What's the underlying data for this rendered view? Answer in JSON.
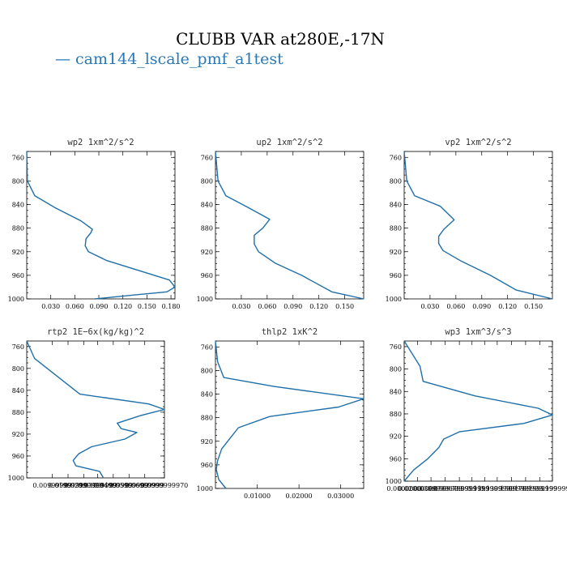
{
  "figure": {
    "title": "CLUBB VAR at280E,-17N",
    "legend": "— cam144_lscale_pmf_a1test",
    "line_color": "#1f6fa8",
    "legend_color": "#2a78b4"
  },
  "chart_data": [
    {
      "type": "line",
      "title": "wp2  1xm^2/s^2",
      "xlim": [
        0,
        0.185
      ],
      "ylim": [
        1000,
        750
      ],
      "xticks": [
        0.03,
        0.06,
        0.09,
        0.12,
        0.15,
        0.18
      ],
      "xtick_labels": [
        "0.030",
        "0.060",
        "0.090",
        "0.120",
        "0.150",
        "0.180"
      ],
      "yticks": [
        760,
        800,
        840,
        880,
        920,
        960,
        1000
      ],
      "series": [
        {
          "x": [
            0,
            0.0008,
            0.01,
            0.035,
            0.068,
            0.082,
            0.08,
            0.074,
            0.073,
            0.077,
            0.1,
            0.178,
            0.185,
            0.175,
            0.13,
            0.085
          ],
          "y": [
            750,
            800,
            825,
            845,
            868,
            882,
            888,
            898,
            910,
            920,
            935,
            968,
            980,
            988,
            994,
            1000
          ]
        }
      ]
    },
    {
      "type": "line",
      "title": "up2  1xm^2/s^2",
      "xlim": [
        0,
        0.172
      ],
      "ylim": [
        1000,
        750
      ],
      "xticks": [
        0.03,
        0.06,
        0.09,
        0.12,
        0.15
      ],
      "xtick_labels": [
        "0.030",
        "0.060",
        "0.090",
        "0.120",
        "0.150"
      ],
      "yticks": [
        760,
        800,
        840,
        880,
        920,
        960,
        1000
      ],
      "series": [
        {
          "x": [
            0,
            0.003,
            0.012,
            0.038,
            0.063,
            0.055,
            0.045,
            0.045,
            0.05,
            0.07,
            0.1,
            0.135,
            0.172
          ],
          "y": [
            750,
            800,
            825,
            845,
            865,
            880,
            892,
            907,
            920,
            940,
            960,
            988,
            1000
          ]
        }
      ]
    },
    {
      "type": "line",
      "title": "vp2  1xm^2/s^2",
      "xlim": [
        0,
        0.172
      ],
      "ylim": [
        1000,
        750
      ],
      "xticks": [
        0.03,
        0.06,
        0.09,
        0.12,
        0.15
      ],
      "xtick_labels": [
        "0.030",
        "0.060",
        "0.090",
        "0.120",
        "0.150"
      ],
      "yticks": [
        760,
        800,
        840,
        880,
        920,
        960,
        1000
      ],
      "series": [
        {
          "x": [
            0,
            0.003,
            0.012,
            0.042,
            0.058,
            0.046,
            0.04,
            0.04,
            0.045,
            0.065,
            0.1,
            0.13,
            0.172
          ],
          "y": [
            750,
            800,
            825,
            843,
            866,
            882,
            894,
            906,
            918,
            935,
            960,
            985,
            1000
          ]
        }
      ]
    },
    {
      "type": "line",
      "title": "rtp2  1E−6x(kg/kg)^2",
      "xlim": [
        0,
        3.5e-06
      ],
      "ylim": [
        1000,
        750
      ],
      "xticks": [
        6.5e-07,
        1.05e-06,
        1.45e-06,
        1.8e-06,
        2.2e-06,
        2.6e-06,
        3e-06,
        3.5e-06
      ],
      "xtick_labels": [
        "0.00999999",
        "0.01999999",
        "0.02999999",
        "0.03999999",
        "0.04999999",
        "0.05999999",
        "0.06999999",
        "0.0999999970"
      ],
      "yticks": [
        760,
        800,
        840,
        880,
        920,
        960,
        1000
      ],
      "series": [
        {
          "x": [
            0,
            2e-07,
            1.35e-06,
            3.1e-06,
            3.5e-06,
            2.9e-06,
            2.3e-06,
            2.4e-06,
            2.8e-06,
            2.5e-06,
            1.65e-06,
            1.32e-06,
            1.18e-06,
            1.25e-06,
            1.85e-06,
            1.95e-06
          ],
          "y": [
            750,
            782,
            847,
            865,
            875,
            886,
            900,
            910,
            917,
            929,
            943,
            956,
            968,
            978,
            988,
            1000
          ]
        }
      ]
    },
    {
      "type": "line",
      "title": "thlp2  1xK^2",
      "xlim": [
        0,
        0.0355
      ],
      "ylim": [
        1000,
        750
      ],
      "xticks": [
        0.01,
        0.02,
        0.03
      ],
      "xtick_labels": [
        "0.01000",
        "0.02000",
        "0.03000"
      ],
      "yticks": [
        760,
        800,
        840,
        880,
        920,
        960,
        1000
      ],
      "series": [
        {
          "x": [
            0,
            0.0005,
            0.002,
            0.014,
            0.0355,
            0.0295,
            0.013,
            0.0055,
            0.0035,
            0.0015,
            0.0005,
            0.0002,
            0.0008,
            0.0025
          ],
          "y": [
            750,
            785,
            812,
            827,
            848,
            862,
            878,
            897,
            915,
            933,
            953,
            968,
            985,
            1000
          ]
        }
      ]
    },
    {
      "type": "line",
      "title": "wp3  1xm^3/s^3",
      "xlim": [
        0,
        9.4e-06
      ],
      "ylim": [
        1000,
        750
      ],
      "xticks": [
        0,
        8.5e-07,
        1.7e-06,
        2.6e-06,
        3.5e-06,
        4.3e-06,
        5.1e-06,
        5.9e-06,
        6.8e-06,
        7.7e-06,
        8.6e-06,
        9.4e-06
      ],
      "xtick_labels": [
        "0.0000000",
        "0.02000000",
        "0.0399999",
        "0.0599999",
        "0.0799999",
        "0.0999999",
        "0.1199999",
        "0.1399999",
        "0.1599999",
        "0.1799999",
        "0.1999999",
        "0.2199999"
      ],
      "yticks": [
        760,
        800,
        840,
        880,
        920,
        960,
        1000
      ],
      "series": [
        {
          "x": [
            0,
            1e-06,
            1.2e-06,
            4.5e-06,
            8.5e-06,
            9.4e-06,
            7.6e-06,
            3.5e-06,
            2.5e-06,
            2.2e-06,
            1.5e-06,
            6e-07,
            0
          ],
          "y": [
            750,
            795,
            822,
            848,
            870,
            882,
            897,
            912,
            925,
            940,
            960,
            980,
            1000
          ]
        }
      ]
    }
  ]
}
